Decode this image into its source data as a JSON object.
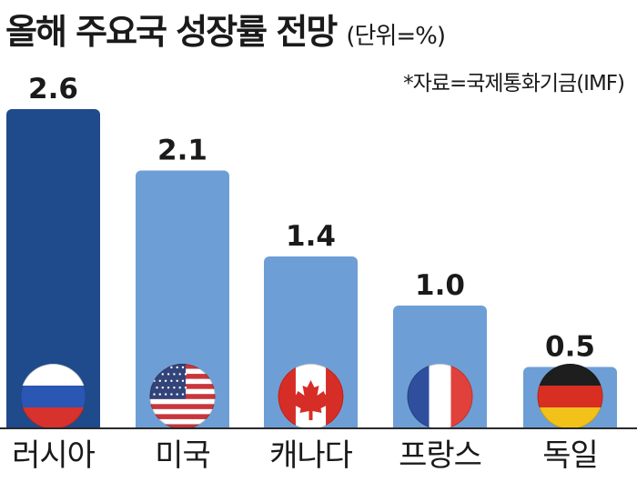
{
  "header": {
    "title": "올해 주요국 성장률 전망",
    "unit": "(단위=%)",
    "source": "*자료=국제통화기금(IMF)"
  },
  "colors": {
    "highlight_bar": "#1f4a8c",
    "bar": "#6d9fd6",
    "text": "#1a1a1a",
    "baseline": "#2a2a2a"
  },
  "chart_data": {
    "type": "bar",
    "title": "올해 주요국 성장률 전망",
    "unit": "%",
    "source": "국제통화기금(IMF)",
    "categories": [
      "러시아",
      "미국",
      "캐나다",
      "프랑스",
      "독일"
    ],
    "values": [
      2.6,
      2.1,
      1.4,
      1.0,
      0.5
    ],
    "value_labels": [
      "2.6",
      "2.1",
      "1.4",
      "1.0",
      "0.5"
    ],
    "highlight_index": 0,
    "flag_icons": [
      "russia-flag-icon",
      "usa-flag-icon",
      "canada-flag-icon",
      "france-flag-icon",
      "germany-flag-icon"
    ],
    "ylim": [
      0,
      2.6
    ],
    "grid": false,
    "legend": "none"
  }
}
